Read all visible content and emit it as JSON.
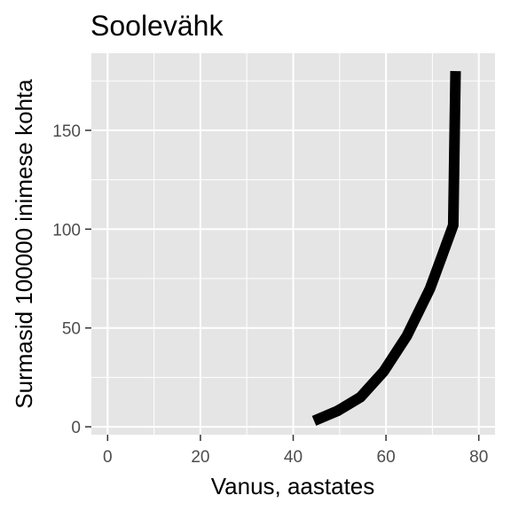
{
  "chart_data": {
    "type": "line",
    "title": "Soolevähk",
    "xlabel": "Vanus, aastates",
    "ylabel": "Surmasid 100000 inimese kohta",
    "xlim": [
      -3.5,
      83.5
    ],
    "ylim": [
      -4,
      189
    ],
    "x_ticks": [
      0,
      20,
      40,
      60,
      80
    ],
    "y_ticks": [
      0,
      50,
      100,
      150
    ],
    "grid": true,
    "legend": "none",
    "colors": {
      "panel": "#e5e5e5",
      "grid": "#ffffff",
      "line": "#000000",
      "tick": "#4d4d4d"
    },
    "series": [
      {
        "x": [
          44.5,
          49.5,
          54.5,
          59.5,
          64.5,
          69.5,
          72.0,
          74.5,
          75.0
        ],
        "y": [
          3,
          8,
          15,
          28,
          46,
          70,
          86,
          102,
          180
        ]
      }
    ]
  }
}
